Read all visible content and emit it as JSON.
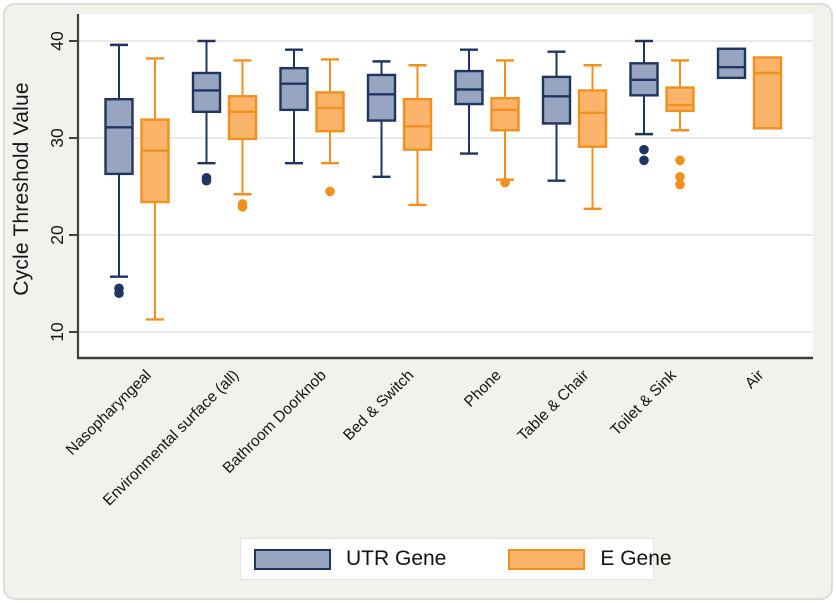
{
  "chart_data": {
    "type": "boxplot",
    "title": "",
    "ylabel": "Cycle Threshold Value",
    "xlabel": "",
    "categories": [
      "Nasopharyngeal",
      "Environmental surface (all)",
      "Bathroom Doorknob",
      "Bed & Switch",
      "Phone",
      "Table & Chair",
      "Toilet & Sink",
      "Air"
    ],
    "yticks": [
      10,
      20,
      30,
      40
    ],
    "ylim": [
      7.3,
      42.8
    ],
    "grid": true,
    "legend_position": "bottom-center",
    "colors": {
      "utr_fill": "#97a5c0",
      "utr_stroke": "#1f3460",
      "e_fill": "#fbb469",
      "e_stroke": "#f0901e",
      "axis": "#3f3f3f",
      "gridline": "#e3e3e9",
      "plot_background": "#ffffff",
      "figure_background": "#f2f1ee"
    },
    "series": [
      {
        "name": "UTR Gene",
        "fill": "#97a5c0",
        "stroke": "#1f3460",
        "boxes": [
          {
            "whislo": 15.7,
            "q1": 26.3,
            "med": 31.1,
            "q3": 34.0,
            "whishi": 39.6,
            "fliers": [
              14.5,
              14.0
            ]
          },
          {
            "whislo": 27.4,
            "q1": 32.7,
            "med": 34.9,
            "q3": 36.7,
            "whishi": 40.0,
            "fliers": [
              25.9,
              25.6
            ]
          },
          {
            "whislo": 27.4,
            "q1": 32.9,
            "med": 35.6,
            "q3": 37.2,
            "whishi": 39.1,
            "fliers": []
          },
          {
            "whislo": 26.0,
            "q1": 31.8,
            "med": 34.5,
            "q3": 36.5,
            "whishi": 37.9,
            "fliers": []
          },
          {
            "whislo": 28.4,
            "q1": 33.5,
            "med": 35.0,
            "q3": 36.9,
            "whishi": 39.1,
            "fliers": []
          },
          {
            "whislo": 25.6,
            "q1": 31.5,
            "med": 34.3,
            "q3": 36.3,
            "whishi": 38.9,
            "fliers": []
          },
          {
            "whislo": 30.4,
            "q1": 34.4,
            "med": 36.0,
            "q3": 37.7,
            "whishi": 40.0,
            "fliers": [
              28.8,
              27.7
            ]
          },
          {
            "whislo": 36.2,
            "q1": 36.2,
            "med": 37.3,
            "q3": 39.2,
            "whishi": 39.2,
            "fliers": []
          }
        ]
      },
      {
        "name": "E Gene",
        "fill": "#fbb469",
        "stroke": "#f0901e",
        "boxes": [
          {
            "whislo": 11.3,
            "q1": 23.4,
            "med": 28.7,
            "q3": 31.9,
            "whishi": 38.2,
            "fliers": []
          },
          {
            "whislo": 24.2,
            "q1": 29.9,
            "med": 32.7,
            "q3": 34.3,
            "whishi": 38.0,
            "fliers": [
              23.2,
              22.9
            ]
          },
          {
            "whislo": 27.4,
            "q1": 30.7,
            "med": 33.1,
            "q3": 34.7,
            "whishi": 38.1,
            "fliers": [
              24.5
            ]
          },
          {
            "whislo": 23.1,
            "q1": 28.8,
            "med": 31.2,
            "q3": 34.0,
            "whishi": 37.5,
            "fliers": []
          },
          {
            "whislo": 25.7,
            "q1": 30.8,
            "med": 32.9,
            "q3": 34.1,
            "whishi": 38.0,
            "fliers": [
              25.4
            ]
          },
          {
            "whislo": 22.7,
            "q1": 29.1,
            "med": 32.6,
            "q3": 34.9,
            "whishi": 37.5,
            "fliers": []
          },
          {
            "whislo": 30.8,
            "q1": 32.8,
            "med": 33.4,
            "q3": 35.2,
            "whishi": 38.0,
            "fliers": [
              27.7,
              26.0,
              25.2
            ]
          },
          {
            "whislo": 31.0,
            "q1": 31.0,
            "med": 36.7,
            "q3": 38.3,
            "whishi": 38.3,
            "fliers": []
          }
        ]
      }
    ]
  }
}
